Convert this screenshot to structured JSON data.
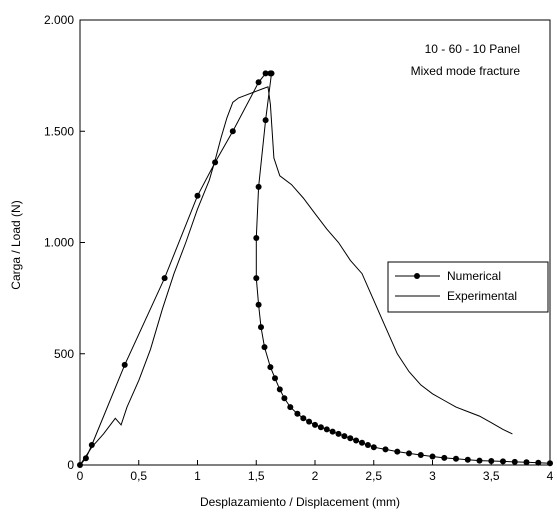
{
  "chart_data": {
    "type": "line",
    "xlabel": "Desplazamiento / Displacement (mm)",
    "ylabel": "Carga / Load (N)",
    "xlim": [
      0,
      4
    ],
    "ylim": [
      0,
      2000
    ],
    "x_ticks": [
      0,
      0.5,
      1,
      1.5,
      2,
      2.5,
      3,
      3.5,
      4
    ],
    "x_tick_labels": [
      "0",
      "0,5",
      "1",
      "1,5",
      "2",
      "2,5",
      "3",
      "3,5",
      "4"
    ],
    "y_ticks": [
      0,
      500,
      1000,
      1500,
      2000
    ],
    "y_tick_labels": [
      "0",
      "500",
      "1.000",
      "1.500",
      "2.000"
    ],
    "annotations": [
      "10 - 60 - 10 Panel",
      "Mixed mode fracture"
    ],
    "grid": false,
    "legend_placement": "right",
    "legend": [
      "Numerical",
      "Experimental"
    ],
    "series": [
      {
        "name": "Numerical",
        "style": "line-with-dot-markers",
        "x": [
          0,
          0.05,
          0.1,
          0.38,
          0.72,
          1.0,
          1.15,
          1.3,
          1.52,
          1.58,
          1.62,
          1.63,
          1.58,
          1.52,
          1.5,
          1.5,
          1.52,
          1.54,
          1.57,
          1.62,
          1.66,
          1.7,
          1.74,
          1.79,
          1.85,
          1.9,
          1.95,
          2.0,
          2.05,
          2.1,
          2.15,
          2.2,
          2.25,
          2.3,
          2.35,
          2.4,
          2.45,
          2.5,
          2.6,
          2.7,
          2.8,
          2.9,
          3.0,
          3.1,
          3.2,
          3.3,
          3.4,
          3.5,
          3.6,
          3.7,
          3.8,
          3.9,
          4.0
        ],
        "y": [
          0,
          30,
          90,
          450,
          840,
          1210,
          1360,
          1500,
          1720,
          1760,
          1760,
          1760,
          1550,
          1250,
          1020,
          840,
          720,
          620,
          530,
          440,
          390,
          340,
          300,
          260,
          230,
          210,
          195,
          180,
          170,
          160,
          150,
          140,
          130,
          120,
          110,
          100,
          90,
          80,
          70,
          60,
          52,
          45,
          38,
          32,
          28,
          24,
          20,
          18,
          16,
          14,
          12,
          10,
          8
        ]
      },
      {
        "name": "Experimental",
        "style": "line",
        "x": [
          0,
          0.05,
          0.1,
          0.2,
          0.3,
          0.35,
          0.4,
          0.5,
          0.6,
          0.7,
          0.8,
          0.9,
          1.0,
          1.1,
          1.15,
          1.2,
          1.25,
          1.3,
          1.35,
          1.4,
          1.5,
          1.55,
          1.6,
          1.62,
          1.65,
          1.7,
          1.8,
          1.9,
          2.0,
          2.1,
          2.2,
          2.3,
          2.4,
          2.5,
          2.6,
          2.7,
          2.8,
          2.9,
          3.0,
          3.1,
          3.2,
          3.3,
          3.4,
          3.5,
          3.6,
          3.68
        ],
        "y": [
          0,
          40,
          80,
          140,
          210,
          180,
          260,
          380,
          520,
          700,
          860,
          1000,
          1150,
          1280,
          1370,
          1470,
          1560,
          1630,
          1650,
          1660,
          1680,
          1690,
          1700,
          1620,
          1380,
          1300,
          1260,
          1200,
          1130,
          1060,
          1000,
          920,
          860,
          740,
          620,
          500,
          420,
          360,
          320,
          290,
          260,
          240,
          220,
          190,
          160,
          140
        ]
      }
    ]
  }
}
